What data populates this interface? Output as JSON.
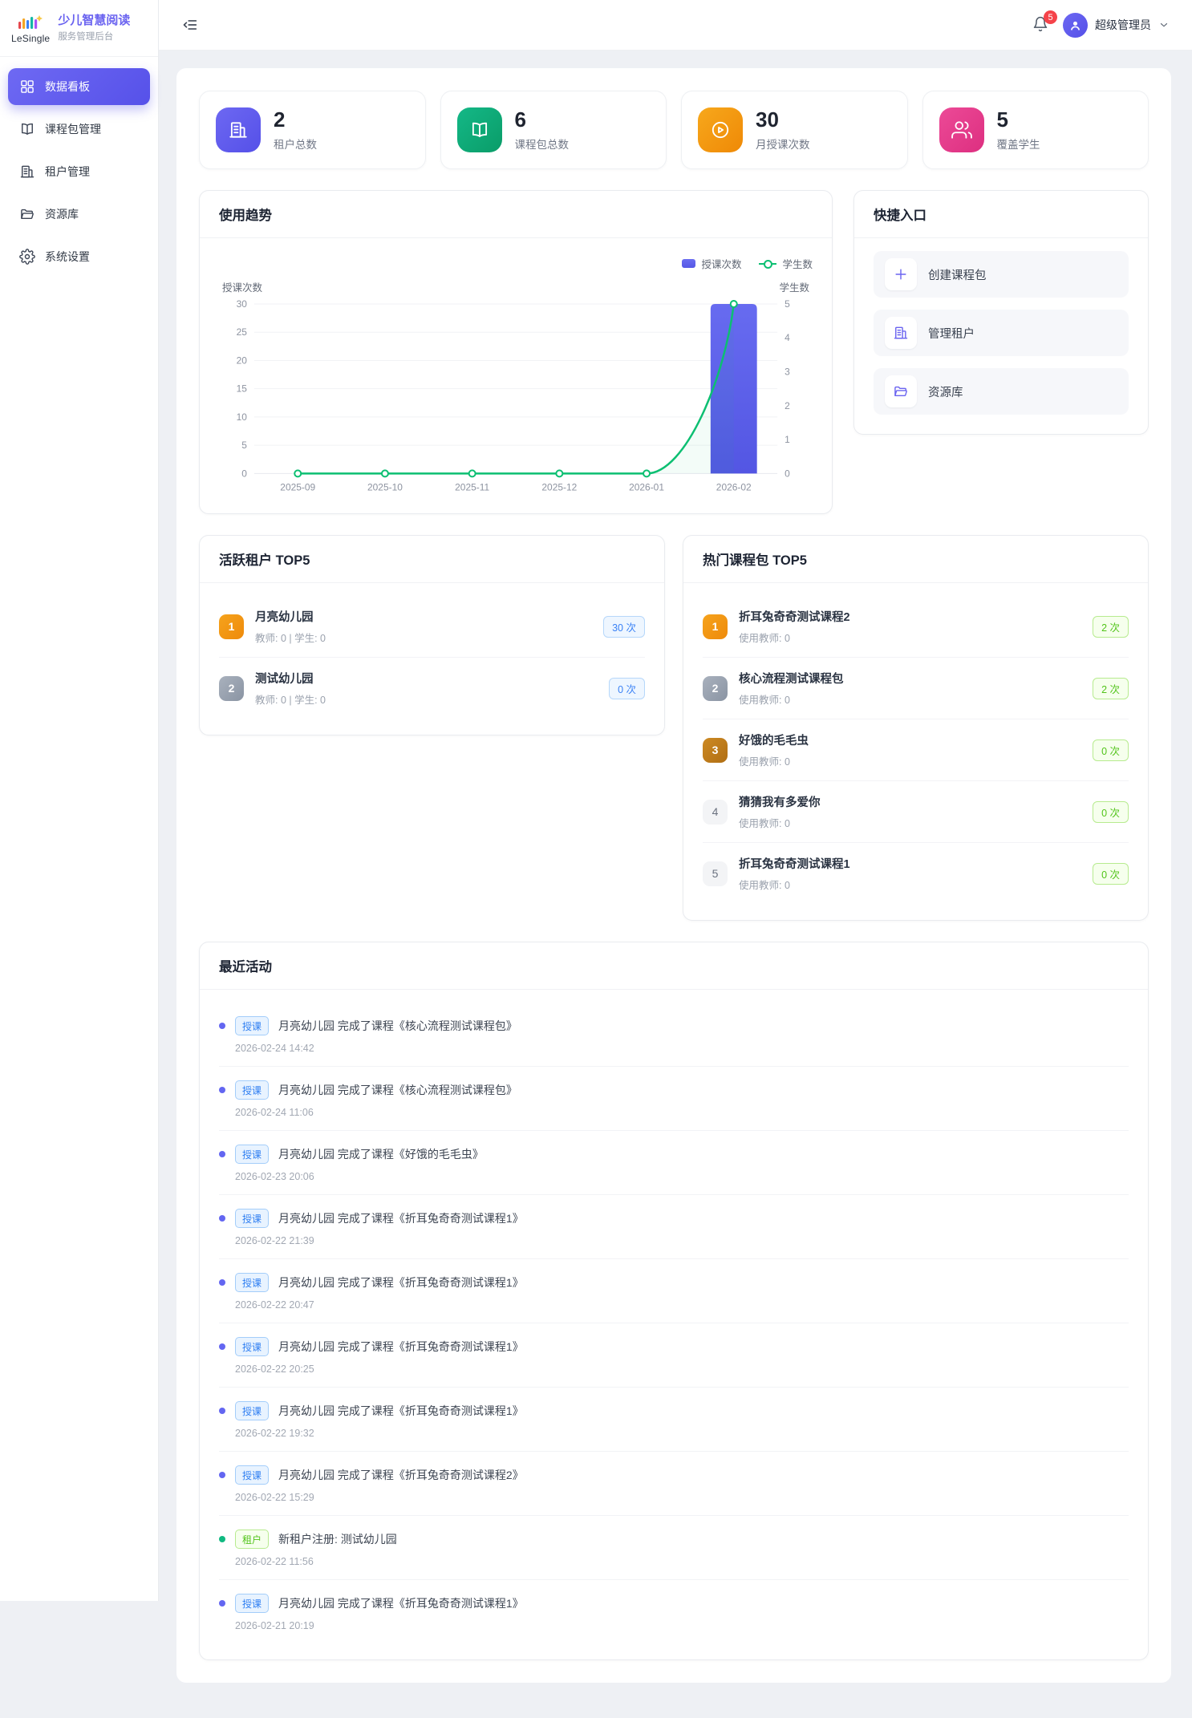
{
  "app": {
    "logo_text": "LeSingle",
    "title": "少儿智慧阅读",
    "subtitle": "服务管理后台"
  },
  "header": {
    "notification_count": "5",
    "user_name": "超级管理员"
  },
  "sidebar": {
    "items": [
      {
        "id": "dashboard",
        "icon": "grid",
        "label": "数据看板",
        "active": true
      },
      {
        "id": "course-packages",
        "icon": "book",
        "label": "课程包管理",
        "active": false
      },
      {
        "id": "tenants",
        "icon": "building",
        "label": "租户管理",
        "active": false
      },
      {
        "id": "resources",
        "icon": "folder",
        "label": "资源库",
        "active": false
      },
      {
        "id": "settings",
        "icon": "gear",
        "label": "系统设置",
        "active": false
      }
    ]
  },
  "stats": {
    "cards": [
      {
        "id": "tenant-total",
        "icon": "building",
        "value": "2",
        "label": "租户总数",
        "color_from": "#6d68f2",
        "color_to": "#5550e8"
      },
      {
        "id": "package-total",
        "icon": "book",
        "value": "6",
        "label": "课程包总数",
        "color_from": "#14b887",
        "color_to": "#0a9c68"
      },
      {
        "id": "monthly-lessons",
        "icon": "play",
        "value": "30",
        "label": "月授课次数",
        "color_from": "#f7a81c",
        "color_to": "#ef8906"
      },
      {
        "id": "students-covered",
        "icon": "users",
        "value": "5",
        "label": "覆盖学生",
        "color_from": "#ec4a97",
        "color_to": "#dd2f80"
      }
    ]
  },
  "trend": {
    "title": "使用趋势"
  },
  "chart_data": {
    "type": "bar",
    "title": "使用趋势",
    "categories": [
      "2025-09",
      "2025-10",
      "2025-11",
      "2025-12",
      "2026-01",
      "2026-02"
    ],
    "series": [
      {
        "name": "授课次数",
        "type": "bar",
        "axis": "left",
        "values": [
          0,
          0,
          0,
          0,
          0,
          30
        ],
        "color": "#5b5fe8"
      },
      {
        "name": "学生数",
        "type": "line",
        "axis": "right",
        "values": [
          0,
          0,
          0,
          0,
          0,
          5
        ],
        "color": "#0cbf72"
      }
    ],
    "left_axis": {
      "label": "授课次数",
      "min": 0,
      "max": 30,
      "ticks": [
        0,
        5,
        10,
        15,
        20,
        25,
        30
      ]
    },
    "right_axis": {
      "label": "学生数",
      "min": 0,
      "max": 5,
      "ticks": [
        0,
        1,
        2,
        3,
        4,
        5
      ]
    },
    "grid": true,
    "legend_position": "top-right"
  },
  "shortcuts": {
    "title": "快捷入口",
    "items": [
      {
        "id": "create-package",
        "icon": "plus",
        "label": "创建课程包"
      },
      {
        "id": "manage-tenants",
        "icon": "building",
        "label": "管理租户"
      },
      {
        "id": "resource-library",
        "icon": "folder",
        "label": "资源库"
      }
    ]
  },
  "top_tenants": {
    "title": "活跃租户 TOP5",
    "pill_style": "pill-blue",
    "items": [
      {
        "rank": "1",
        "name": "月亮幼儿园",
        "meta": "教师: 0 | 学生: 0",
        "count": "30 次"
      },
      {
        "rank": "2",
        "name": "测试幼儿园",
        "meta": "教师: 0 | 学生: 0",
        "count": "0 次"
      }
    ]
  },
  "top_courses": {
    "title": "热门课程包 TOP5",
    "pill_style": "pill-green",
    "items": [
      {
        "rank": "1",
        "name": "折耳兔奇奇测试课程2",
        "meta": "使用教师: 0",
        "count": "2 次"
      },
      {
        "rank": "2",
        "name": "核心流程测试课程包",
        "meta": "使用教师: 0",
        "count": "2 次"
      },
      {
        "rank": "3",
        "name": "好饿的毛毛虫",
        "meta": "使用教师: 0",
        "count": "0 次"
      },
      {
        "rank": "4",
        "name": "猜猜我有多爱你",
        "meta": "使用教师: 0",
        "count": "0 次"
      },
      {
        "rank": "5",
        "name": "折耳兔奇奇测试课程1",
        "meta": "使用教师: 0",
        "count": "0 次"
      }
    ]
  },
  "activities": {
    "title": "最近活动",
    "items": [
      {
        "tag": "授课",
        "type": "blue",
        "text": "月亮幼儿园 完成了课程《核心流程测试课程包》",
        "time": "2026-02-24 14:42"
      },
      {
        "tag": "授课",
        "type": "blue",
        "text": "月亮幼儿园 完成了课程《核心流程测试课程包》",
        "time": "2026-02-24 11:06"
      },
      {
        "tag": "授课",
        "type": "blue",
        "text": "月亮幼儿园 完成了课程《好饿的毛毛虫》",
        "time": "2026-02-23 20:06"
      },
      {
        "tag": "授课",
        "type": "blue",
        "text": "月亮幼儿园 完成了课程《折耳兔奇奇测试课程1》",
        "time": "2026-02-22 21:39"
      },
      {
        "tag": "授课",
        "type": "blue",
        "text": "月亮幼儿园 完成了课程《折耳兔奇奇测试课程1》",
        "time": "2026-02-22 20:47"
      },
      {
        "tag": "授课",
        "type": "blue",
        "text": "月亮幼儿园 完成了课程《折耳兔奇奇测试课程1》",
        "time": "2026-02-22 20:25"
      },
      {
        "tag": "授课",
        "type": "blue",
        "text": "月亮幼儿园 完成了课程《折耳兔奇奇测试课程1》",
        "time": "2026-02-22 19:32"
      },
      {
        "tag": "授课",
        "type": "blue",
        "text": "月亮幼儿园 完成了课程《折耳兔奇奇测试课程2》",
        "time": "2026-02-22 15:29"
      },
      {
        "tag": "租户",
        "type": "green",
        "text": "新租户注册: 测试幼儿园",
        "time": "2026-02-22 11:56"
      },
      {
        "tag": "授课",
        "type": "blue",
        "text": "月亮幼儿园 完成了课程《折耳兔奇奇测试课程1》",
        "time": "2026-02-21 20:19"
      }
    ]
  }
}
